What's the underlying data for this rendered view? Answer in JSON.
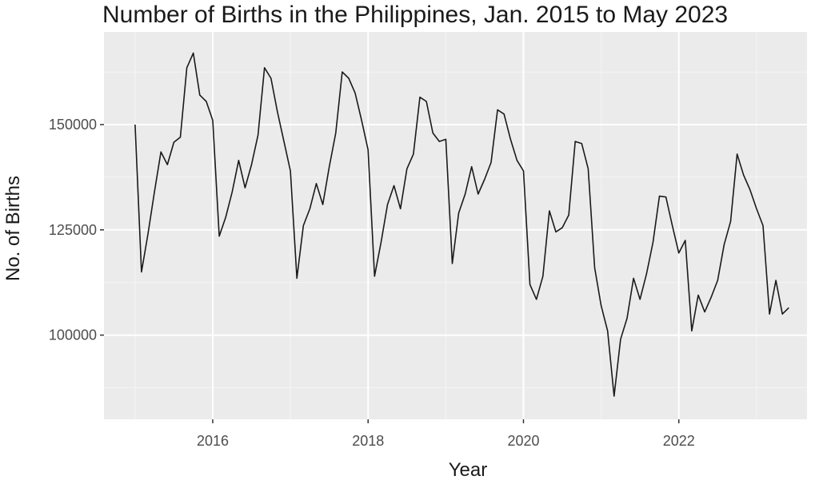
{
  "chart_data": {
    "type": "line",
    "title": "Number of Births in the Philippines, Jan. 2015 to May 2023",
    "xlabel": "Year",
    "ylabel": "No. of Births",
    "xlim": [
      2014.6,
      2023.65
    ],
    "ylim": [
      80000,
      172000
    ],
    "x_ticks": [
      2016,
      2018,
      2020,
      2022
    ],
    "y_ticks": [
      100000,
      125000,
      150000
    ],
    "grid": true,
    "legend": "none",
    "colors": {
      "panel": "#ebebeb",
      "grid_major": "#ffffff",
      "grid_minor": "#f5f5f5",
      "line": "#1a1a1a"
    },
    "x_unit": "year (monthly observations, Jan. 2015 – May 2023)",
    "series": [
      {
        "values": [
          150000,
          115000,
          124000,
          134000,
          143500,
          140500,
          145800,
          147000,
          163500,
          167000,
          157000,
          155500,
          151000,
          123500,
          128000,
          134000,
          141500,
          135000,
          140500,
          147500,
          163500,
          161000,
          153000,
          146000,
          139000,
          113500,
          126000,
          130000,
          136000,
          131000,
          140000,
          148000,
          162500,
          161000,
          157500,
          151000,
          144000,
          114000,
          122000,
          131000,
          135500,
          130000,
          139500,
          143000,
          156500,
          155500,
          148000,
          146000,
          146500,
          117000,
          129000,
          133500,
          140000,
          133500,
          137000,
          141000,
          153500,
          152500,
          146500,
          141500,
          139000,
          112000,
          108500,
          114000,
          129500,
          124500,
          125500,
          128500,
          146000,
          145500,
          139500,
          116000,
          107000,
          101000,
          85500,
          99000,
          104000,
          113500,
          108500,
          114500,
          122000,
          133000,
          132800,
          126000,
          119500,
          122500,
          101000,
          109500,
          105500,
          109000,
          113000,
          121500,
          127000,
          143000,
          138000,
          134500,
          130000,
          126000,
          105000,
          113000,
          105000,
          106500
        ]
      }
    ]
  }
}
